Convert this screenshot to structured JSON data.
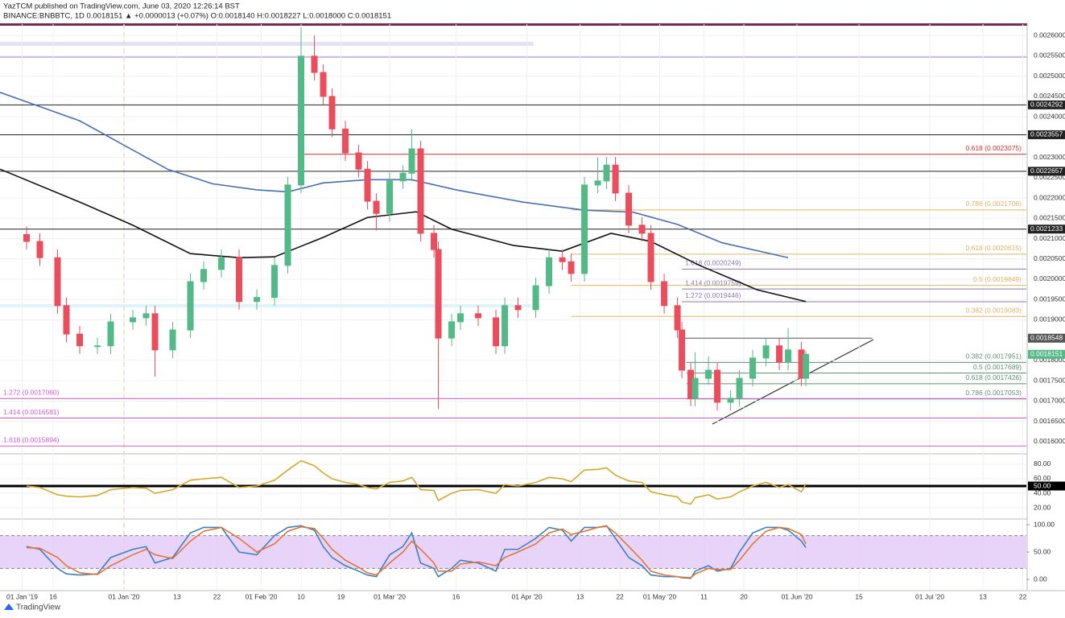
{
  "header": {
    "author_line": "YazTCM published on TradingView.com, June 03, 2020 12:26:14 BST",
    "symbol_line": "BINANCE:BNBBTC, 1D  0.0018151 ▲ +0.0000013 (+0.07%)  O:0.0018140  H:0.0018227  L:0.0018000  C:0.0018151"
  },
  "footer": {
    "brand": "TradingView"
  },
  "chart_data": [
    {
      "type": "candlestick",
      "x": [
        -22,
        -19,
        -15,
        -13,
        -10,
        -6,
        -3,
        2,
        5,
        7,
        11,
        15,
        18,
        22,
        26,
        30,
        34,
        37,
        40,
        43,
        45,
        47,
        50,
        53,
        55,
        57,
        60,
        63,
        65,
        67,
        70,
        71,
        74,
        76,
        80,
        84,
        86,
        89,
        93,
        96,
        99,
        101,
        104,
        107,
        109,
        111,
        114,
        117,
        119,
        122,
        125,
        126,
        128,
        129,
        132,
        134,
        137,
        139,
        142,
        145,
        148,
        150,
        153,
        154
      ],
      "open": [
        0.00211,
        0.002093,
        0.002053,
        0.001935,
        0.001865,
        0.001836,
        0.001836,
        0.001895,
        0.001905,
        0.001915,
        0.001826,
        0.001875,
        0.001994,
        0.002024,
        0.002053,
        0.001945,
        0.001955,
        0.002034,
        0.002232,
        0.002549,
        0.002509,
        0.00245,
        0.00237,
        0.002311,
        0.002271,
        0.002192,
        0.002162,
        0.002242,
        0.002261,
        0.002321,
        0.002113,
        0.002073,
        0.001855,
        0.001895,
        0.001915,
        0.001905,
        0.001836,
        0.001935,
        0.001925,
        0.001984,
        0.002053,
        0.002043,
        0.002014,
        0.002232,
        0.002242,
        0.002281,
        0.002212,
        0.002133,
        0.002113,
        0.001994,
        0.001935,
        0.001875,
        0.001776,
        0.001707,
        0.001756,
        0.001776,
        0.001697,
        0.001707,
        0.001756,
        0.001806,
        0.001836,
        0.001796,
        0.001826,
        0.001756
      ],
      "high": [
        0.00213,
        0.002113,
        0.002073,
        0.001955,
        0.001885,
        0.001856,
        0.001915,
        0.001925,
        0.001935,
        0.001935,
        0.001895,
        0.002014,
        0.002044,
        0.002073,
        0.002073,
        0.001975,
        0.002054,
        0.002252,
        0.00262,
        0.0026,
        0.002529,
        0.00247,
        0.00239,
        0.002331,
        0.002291,
        0.002212,
        0.002262,
        0.002281,
        0.00237,
        0.002341,
        0.002133,
        0.002093,
        0.001915,
        0.001935,
        0.001935,
        0.001925,
        0.001955,
        0.001955,
        0.002004,
        0.002073,
        0.002073,
        0.002063,
        0.002252,
        0.0023,
        0.002301,
        0.002301,
        0.002232,
        0.002153,
        0.002133,
        0.002014,
        0.001955,
        0.001895,
        0.001796,
        0.00182,
        0.00181,
        0.001796,
        0.001727,
        0.001776,
        0.001826,
        0.001856,
        0.001856,
        0.00188,
        0.001846,
        0.001823
      ],
      "low": [
        0.002073,
        0.002033,
        0.001915,
        0.001845,
        0.001816,
        0.001816,
        0.001816,
        0.001875,
        0.001885,
        0.00176,
        0.001806,
        0.001855,
        0.001974,
        0.002004,
        0.001925,
        0.001925,
        0.001935,
        0.002014,
        0.002212,
        0.002489,
        0.00243,
        0.00235,
        0.002291,
        0.002251,
        0.002172,
        0.00212,
        0.002142,
        0.002222,
        0.002241,
        0.002093,
        0.002053,
        0.00168,
        0.001835,
        0.001875,
        0.001885,
        0.001816,
        0.001816,
        0.001905,
        0.001905,
        0.001964,
        0.002023,
        0.001994,
        0.001994,
        0.002212,
        0.002222,
        0.002192,
        0.002113,
        0.002093,
        0.001974,
        0.001915,
        0.001855,
        0.001756,
        0.001687,
        0.001687,
        0.00174,
        0.001677,
        0.001677,
        0.001687,
        0.001736,
        0.001786,
        0.001776,
        0.001776,
        0.001736,
        0.001736
      ],
      "close": [
        0.002093,
        0.002053,
        0.001935,
        0.001865,
        0.001836,
        0.001836,
        0.001895,
        0.001905,
        0.001915,
        0.001826,
        0.001875,
        0.001994,
        0.002024,
        0.002053,
        0.001945,
        0.001955,
        0.002034,
        0.002232,
        0.002549,
        0.002509,
        0.00245,
        0.00237,
        0.002311,
        0.002271,
        0.002192,
        0.002162,
        0.002242,
        0.002261,
        0.002321,
        0.002113,
        0.002073,
        0.001855,
        0.001895,
        0.001915,
        0.001905,
        0.001836,
        0.001935,
        0.001925,
        0.001984,
        0.002053,
        0.002043,
        0.002014,
        0.002232,
        0.002242,
        0.002281,
        0.002212,
        0.002133,
        0.002113,
        0.001994,
        0.001935,
        0.001875,
        0.001776,
        0.001707,
        0.001756,
        0.001776,
        0.001697,
        0.001707,
        0.001756,
        0.001806,
        0.001836,
        0.001796,
        0.001826,
        0.001756,
        0.0018151
      ],
      "up_color": "#53b987",
      "down_color": "#eb4d5c",
      "series": [
        {
          "color": "#4a6fb0",
          "x": [
            -28,
            -10,
            0,
            10,
            20,
            30,
            37,
            45,
            55,
            65,
            75,
            90,
            104,
            115,
            125,
            135,
            150
          ],
          "values": [
            0.00246,
            0.00239,
            0.00233,
            0.00227,
            0.002235,
            0.00222,
            0.002215,
            0.002237,
            0.002245,
            0.002245,
            0.00222,
            0.00219,
            0.00217,
            0.002165,
            0.002135,
            0.00209,
            0.002053
          ]
        },
        {
          "color": "#111111",
          "x": [
            -28,
            -10,
            2,
            15,
            26,
            34,
            45,
            55,
            66,
            74,
            88,
            99,
            110,
            119,
            130,
            143,
            154
          ],
          "values": [
            0.002271,
            0.00219,
            0.002133,
            0.002063,
            0.002053,
            0.002055,
            0.002103,
            0.002152,
            0.002166,
            0.002123,
            0.002083,
            0.002069,
            0.002113,
            0.002093,
            0.002034,
            0.001974,
            0.001945
          ]
        }
      ],
      "levels": [
        {
          "value": 0.0024292,
          "color": "#222222",
          "x0": -28,
          "boxed": true
        },
        {
          "value": 0.0023557,
          "color": "#222222",
          "x0": -28,
          "boxed": true
        },
        {
          "value": 0.0022657,
          "color": "#222222",
          "x0": -28,
          "boxed": true
        },
        {
          "value": 0.0021233,
          "color": "#222222",
          "x0": -28,
          "boxed": true
        },
        {
          "value": 0.0018548,
          "color": "#555555",
          "x0": 126,
          "x1": 169,
          "boxed": true
        },
        {
          "value": 0.0023075,
          "label": "0.618 (0.0023075)",
          "color": "#d32f2f",
          "x0": 40,
          "label_side": "right"
        },
        {
          "value": 0.0021706,
          "label": "0.786 (0.0021706)",
          "color": "#e0b467",
          "x0": 101,
          "label_side": "right"
        },
        {
          "value": 0.0020615,
          "label": "0.618 (0.0020615)",
          "color": "#e0b467",
          "x0": 101,
          "label_side": "right"
        },
        {
          "value": 0.0020249,
          "label": "1.618 (0.0020249)",
          "color": "#8c7aa8",
          "x0": 126,
          "label_side": "left"
        },
        {
          "value": 0.0019849,
          "label": "0.5 (0.0019849)",
          "color": "#e0b467",
          "x0": 101,
          "label_side": "right"
        },
        {
          "value": 0.0019759,
          "label": "1.414 (0.0019759)",
          "color": "#8c7aa8",
          "x0": 126,
          "label_side": "left"
        },
        {
          "value": 0.0019446,
          "label": "1.272 (0.0019446)",
          "color": "#8c7aa8",
          "x0": 126,
          "label_side": "left"
        },
        {
          "value": 0.0019083,
          "label": "0.382 (0.0019083)",
          "color": "#e0b467",
          "x0": 101,
          "label_side": "right"
        },
        {
          "value": 0.0017951,
          "label": "0.382 (0.0017951)",
          "color": "#5f8f6f",
          "x0": 127,
          "label_side": "right"
        },
        {
          "value": 0.0017689,
          "label": "0.5 (0.0017689)",
          "color": "#5f8f6f",
          "x0": 127,
          "label_side": "right"
        },
        {
          "value": 0.0017426,
          "label": "0.618 (0.0017426)",
          "color": "#5f8f6f",
          "x0": 127,
          "label_side": "right"
        },
        {
          "value": 0.0017053,
          "label": "0.786 (0.0017053)",
          "color": "#5f8f6f",
          "x0": 127,
          "label_side": "right"
        },
        {
          "value": 0.001706,
          "label": "1.272 (0.0017060)",
          "color": "#d35bd3",
          "x0": -28,
          "label_side": "left"
        },
        {
          "value": 0.0016581,
          "label": "1.414 (0.0016581)",
          "color": "#d35bd3",
          "x0": -28,
          "label_side": "left"
        },
        {
          "value": 0.0015894,
          "label": "1.618 (0.0015894)",
          "color": "#d35bd3",
          "x0": -28,
          "label_side": "left"
        }
      ],
      "xlim": [
        -28,
        203.8
      ],
      "ylim": [
        0.001574,
        0.002628
      ],
      "xticks": [
        {
          "value": -23,
          "label": "01 Jan '19"
        },
        {
          "value": -16,
          "label": "16"
        },
        {
          "value": 0,
          "label": "01 Jan '20"
        },
        {
          "value": 12,
          "label": "13"
        },
        {
          "value": 21,
          "label": "22"
        },
        {
          "value": 31,
          "label": "01 Feb '20"
        },
        {
          "value": 40,
          "label": "10"
        },
        {
          "value": 49,
          "label": "19"
        },
        {
          "value": 60,
          "label": "01 Mar '20"
        },
        {
          "value": 75,
          "label": "16"
        },
        {
          "value": 91,
          "label": "01 Apr '20"
        },
        {
          "value": 103,
          "label": "13"
        },
        {
          "value": 112,
          "label": "22"
        },
        {
          "value": 121,
          "label": "01 May '20"
        },
        {
          "value": 131,
          "label": "11"
        },
        {
          "value": 140,
          "label": "20"
        },
        {
          "value": 152,
          "label": "01 Jun '20"
        },
        {
          "value": 166,
          "label": "15"
        },
        {
          "value": 182,
          "label": "01 Jul '20"
        },
        {
          "value": 194,
          "label": "13"
        },
        {
          "value": 203,
          "label": "22"
        }
      ],
      "yticks": [
        {
          "value": 0.0016,
          "label": "0.0016000"
        },
        {
          "value": 0.00165,
          "label": "0.0016500"
        },
        {
          "value": 0.0017,
          "label": "0.0017000"
        },
        {
          "value": 0.00175,
          "label": "0.0017500"
        },
        {
          "value": 0.0018,
          "label": "0.0018000"
        },
        {
          "value": 0.0019,
          "label": "0.0019000"
        },
        {
          "value": 0.00195,
          "label": "0.0019500"
        },
        {
          "value": 0.002,
          "label": "0.0020000"
        },
        {
          "value": 0.00205,
          "label": "0.0020500"
        },
        {
          "value": 0.0021,
          "label": "0.0021000"
        },
        {
          "value": 0.00215,
          "label": "0.0021500"
        },
        {
          "value": 0.0022,
          "label": "0.0022000"
        },
        {
          "value": 0.00225,
          "label": "0.0022500"
        },
        {
          "value": 0.0023,
          "label": "0.0023000"
        },
        {
          "value": 0.0024,
          "label": "0.0024000"
        },
        {
          "value": 0.00245,
          "label": "0.0024500"
        },
        {
          "value": 0.0025,
          "label": "0.0025000"
        },
        {
          "value": 0.00255,
          "label": "0.0025500"
        },
        {
          "value": 0.0026,
          "label": "0.0026000"
        }
      ],
      "grid": true
    },
    {
      "type": "line",
      "series": [
        {
          "color": "#d4a82a",
          "values": [
            50,
            48,
            38,
            36,
            35,
            37,
            45,
            48,
            47,
            40,
            45,
            58,
            60,
            62,
            48,
            50,
            58,
            72,
            85,
            78,
            68,
            60,
            55,
            52,
            48,
            46,
            55,
            57,
            62,
            45,
            44,
            30,
            40,
            44,
            45,
            40,
            52,
            50,
            55,
            62,
            60,
            56,
            72,
            73,
            75,
            65,
            57,
            55,
            42,
            38,
            35,
            28,
            25,
            34,
            38,
            32,
            35,
            42,
            50,
            55,
            48,
            52,
            42,
            53
          ]
        }
      ],
      "midline": {
        "value": 50,
        "label": "50.00"
      },
      "ylim": [
        6.7,
        93.3
      ],
      "yticks": [
        {
          "value": 20,
          "label": "20.00"
        },
        {
          "value": 40,
          "label": "40.00"
        },
        {
          "value": 60,
          "label": "60.00"
        },
        {
          "value": 80,
          "label": "80.00"
        }
      ],
      "grid": true
    },
    {
      "type": "line",
      "series": [
        {
          "color": "#3d7fc1",
          "values": [
            60,
            55,
            20,
            10,
            8,
            10,
            40,
            55,
            60,
            30,
            40,
            85,
            95,
            95,
            50,
            45,
            80,
            95,
            98,
            90,
            60,
            40,
            25,
            15,
            8,
            5,
            45,
            60,
            85,
            30,
            20,
            5,
            20,
            35,
            30,
            15,
            55,
            55,
            75,
            95,
            90,
            70,
            95,
            95,
            98,
            75,
            40,
            25,
            8,
            5,
            5,
            3,
            2,
            15,
            25,
            15,
            20,
            50,
            85,
            95,
            95,
            90,
            70,
            58
          ]
        },
        {
          "color": "#e0763a",
          "values": [
            58,
            57,
            40,
            25,
            12,
            9,
            25,
            45,
            55,
            45,
            38,
            70,
            88,
            95,
            75,
            50,
            65,
            88,
            96,
            93,
            75,
            55,
            35,
            22,
            12,
            8,
            30,
            50,
            70,
            55,
            30,
            15,
            15,
            28,
            32,
            25,
            40,
            50,
            65,
            85,
            92,
            82,
            88,
            95,
            97,
            85,
            60,
            35,
            15,
            8,
            5,
            4,
            3,
            10,
            20,
            18,
            18,
            35,
            65,
            88,
            95,
            93,
            82,
            65
          ]
        }
      ],
      "band": [
        20,
        80
      ],
      "band_color": "#e3c9f7",
      "ylim": [
        -19.1,
        107.4
      ],
      "yticks": [
        {
          "value": 0,
          "label": "0.00"
        },
        {
          "value": 50,
          "label": "50.00"
        },
        {
          "value": 100,
          "label": "100.00"
        }
      ],
      "grid": false
    }
  ]
}
